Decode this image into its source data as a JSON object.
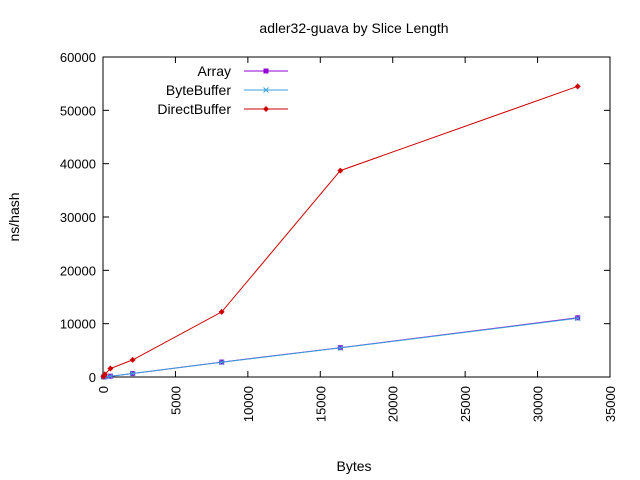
{
  "chart_data": {
    "type": "line",
    "title": "adler32-guava by Slice Length",
    "xlabel": "Bytes",
    "ylabel": "ns/hash",
    "xlim": [
      0,
      35000
    ],
    "ylim": [
      0,
      60000
    ],
    "xticks": [
      0,
      5000,
      10000,
      15000,
      20000,
      25000,
      30000,
      35000
    ],
    "yticks": [
      0,
      10000,
      20000,
      30000,
      40000,
      50000,
      60000
    ],
    "grid": false,
    "legend": "top-left",
    "series": [
      {
        "name": "Array",
        "color": "#9400d3",
        "marker": "square",
        "x": [
          32,
          128,
          512,
          2048,
          8192,
          16384,
          32768
        ],
        "y": [
          10,
          40,
          150,
          650,
          2800,
          5500,
          11100
        ]
      },
      {
        "name": "ByteBuffer",
        "color": "#3aa2d8",
        "marker": "x",
        "x": [
          32,
          128,
          512,
          2048,
          8192,
          16384,
          32768
        ],
        "y": [
          10,
          40,
          150,
          650,
          2750,
          5450,
          11000
        ]
      },
      {
        "name": "DirectBuffer",
        "color": "#cc0000",
        "marker": "diamond",
        "x": [
          32,
          128,
          512,
          2048,
          8192,
          16384,
          32768
        ],
        "y": [
          100,
          500,
          1600,
          3200,
          12200,
          38700,
          54500
        ]
      }
    ]
  }
}
